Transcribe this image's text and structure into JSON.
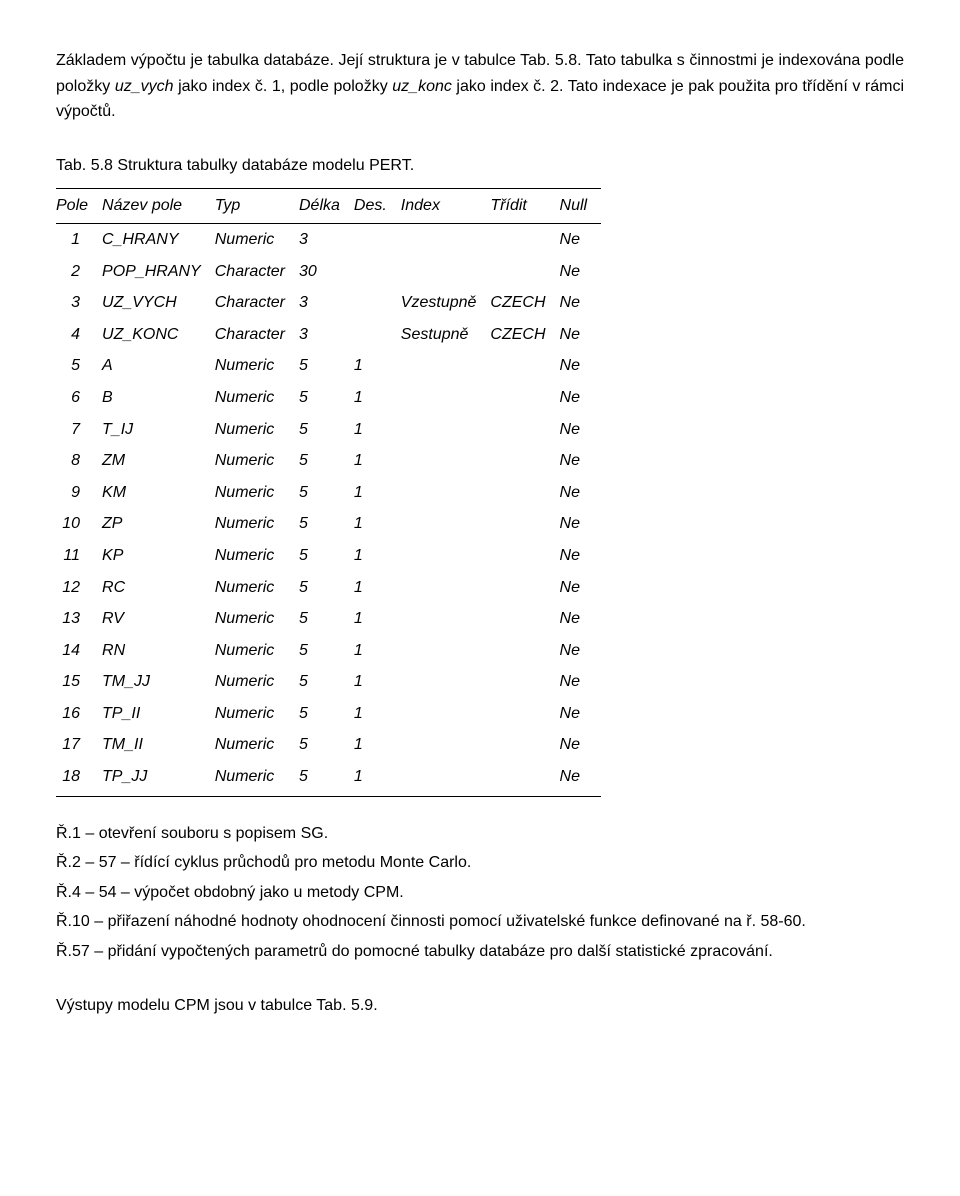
{
  "intro": {
    "p1_pre": "Základem výpočtu je tabulka databáze. Její struktura je v tabulce Tab. 5.8. Tato tabulka s činnostmi je indexována podle položky ",
    "p1_it1": "uz_vych",
    "p1_mid1": " jako index č. 1, podle položky ",
    "p1_it2": "uz_konc",
    "p1_mid2": " jako index č. 2. Tato indexace je pak použita pro třídění v rámci výpočtů."
  },
  "caption": "Tab. 5.8 Struktura tabulky databáze modelu PERT.",
  "table": {
    "headers": [
      "Pole",
      "Název pole",
      "Typ",
      "Délka",
      "Des.",
      "Index",
      "Třídit",
      "Null"
    ],
    "rows": [
      {
        "pole": "1",
        "nazev": "C_HRANY",
        "typ": "Numeric",
        "delka": "3",
        "des": "",
        "index": "",
        "tridit": "",
        "null": "Ne"
      },
      {
        "pole": "2",
        "nazev": "POP_HRANY",
        "typ": "Character",
        "delka": "30",
        "des": "",
        "index": "",
        "tridit": "",
        "null": "Ne"
      },
      {
        "pole": "3",
        "nazev": "UZ_VYCH",
        "typ": "Character",
        "delka": "3",
        "des": "",
        "index": "Vzestupně",
        "tridit": "CZECH",
        "null": "Ne"
      },
      {
        "pole": "4",
        "nazev": "UZ_KONC",
        "typ": "Character",
        "delka": "3",
        "des": "",
        "index": "Sestupně",
        "tridit": "CZECH",
        "null": "Ne"
      },
      {
        "pole": "5",
        "nazev": "A",
        "typ": "Numeric",
        "delka": "5",
        "des": "1",
        "index": "",
        "tridit": "",
        "null": "Ne"
      },
      {
        "pole": "6",
        "nazev": "B",
        "typ": "Numeric",
        "delka": "5",
        "des": "1",
        "index": "",
        "tridit": "",
        "null": "Ne"
      },
      {
        "pole": "7",
        "nazev": "T_IJ",
        "typ": "Numeric",
        "delka": "5",
        "des": "1",
        "index": "",
        "tridit": "",
        "null": "Ne"
      },
      {
        "pole": "8",
        "nazev": "ZM",
        "typ": "Numeric",
        "delka": "5",
        "des": "1",
        "index": "",
        "tridit": "",
        "null": "Ne"
      },
      {
        "pole": "9",
        "nazev": "KM",
        "typ": "Numeric",
        "delka": "5",
        "des": "1",
        "index": "",
        "tridit": "",
        "null": "Ne"
      },
      {
        "pole": "10",
        "nazev": "ZP",
        "typ": "Numeric",
        "delka": "5",
        "des": "1",
        "index": "",
        "tridit": "",
        "null": "Ne"
      },
      {
        "pole": "11",
        "nazev": "KP",
        "typ": "Numeric",
        "delka": "5",
        "des": "1",
        "index": "",
        "tridit": "",
        "null": "Ne"
      },
      {
        "pole": "12",
        "nazev": "RC",
        "typ": "Numeric",
        "delka": "5",
        "des": "1",
        "index": "",
        "tridit": "",
        "null": "Ne"
      },
      {
        "pole": "13",
        "nazev": "RV",
        "typ": "Numeric",
        "delka": "5",
        "des": "1",
        "index": "",
        "tridit": "",
        "null": "Ne"
      },
      {
        "pole": "14",
        "nazev": "RN",
        "typ": "Numeric",
        "delka": "5",
        "des": "1",
        "index": "",
        "tridit": "",
        "null": "Ne"
      },
      {
        "pole": "15",
        "nazev": "TM_JJ",
        "typ": "Numeric",
        "delka": "5",
        "des": "1",
        "index": "",
        "tridit": "",
        "null": "Ne"
      },
      {
        "pole": "16",
        "nazev": "TP_II",
        "typ": "Numeric",
        "delka": "5",
        "des": "1",
        "index": "",
        "tridit": "",
        "null": "Ne"
      },
      {
        "pole": "17",
        "nazev": "TM_II",
        "typ": "Numeric",
        "delka": "5",
        "des": "1",
        "index": "",
        "tridit": "",
        "null": "Ne"
      },
      {
        "pole": "18",
        "nazev": "TP_JJ",
        "typ": "Numeric",
        "delka": "5",
        "des": "1",
        "index": "",
        "tridit": "",
        "null": "Ne"
      }
    ]
  },
  "notes": {
    "n1": "Ř.1 – otevření souboru s popisem SG.",
    "n2": "Ř.2 – 57 – řídící cyklus průchodů pro metodu Monte Carlo.",
    "n3": "Ř.4 – 54 – výpočet obdobný jako u metody CPM.",
    "n4": "Ř.10 – přiřazení náhodné hodnoty ohodnocení činnosti pomocí uživatelské funkce definované na ř. 58-60.",
    "n5": "Ř.57 – přidání vypočtených parametrů do pomocné tabulky databáze pro další statistické zpracování."
  },
  "footer": "Výstupy modelu CPM jsou v tabulce Tab. 5.9."
}
